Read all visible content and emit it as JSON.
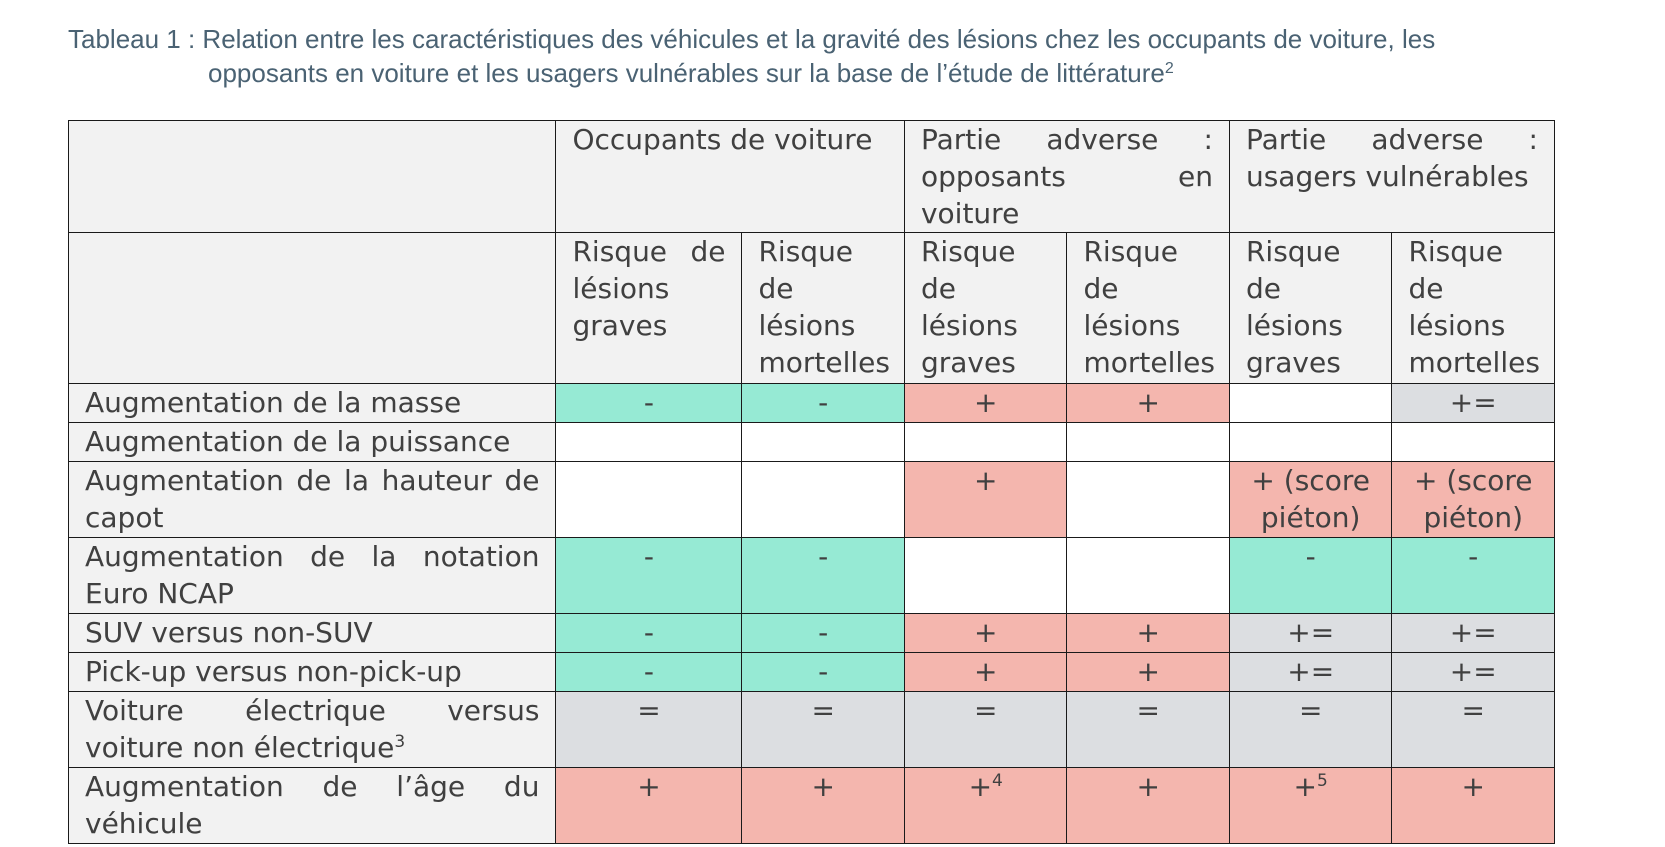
{
  "caption": {
    "line1": "Tableau 1 : Relation entre les caractéristiques des véhicules et la gravité des lésions chez les occupants de voiture, les",
    "line2": "opposants en voiture et les usagers vulnérables sur la base de l’étude de littérature",
    "footnote_ref": "2"
  },
  "table": {
    "groups": [
      "Occupants de voiture",
      "Partie adverse : opposants en voiture",
      "Partie adverse : usagers vulnérables"
    ],
    "subheaders": [
      "Risque de lésions graves",
      "Risque de lésions mortelles",
      "Risque de lésions graves",
      "Risque de lésions mortelles",
      "Risque de lésions graves",
      "Risque de lésions mortelles"
    ],
    "rows": [
      {
        "label": "Augmentation de la masse",
        "cells": [
          "-",
          "-",
          "+",
          "+",
          "",
          "+="
        ],
        "colors": [
          "green",
          "green",
          "red",
          "red",
          "white",
          "gray"
        ]
      },
      {
        "label": "Augmentation de la puissance",
        "cells": [
          "",
          "",
          "",
          "",
          "",
          ""
        ],
        "colors": [
          "white",
          "white",
          "white",
          "white",
          "white",
          "white"
        ]
      },
      {
        "label": "Augmentation de la hauteur de capot",
        "cells": [
          "",
          "",
          "+",
          "",
          "+ (score piéton)",
          "+ (score piéton)"
        ],
        "colors": [
          "white",
          "white",
          "red",
          "white",
          "red",
          "red"
        ]
      },
      {
        "label": "Augmentation de la notation Euro NCAP",
        "cells": [
          "-",
          "-",
          "",
          "",
          "-",
          "-"
        ],
        "colors": [
          "green",
          "green",
          "white",
          "white",
          "green",
          "green"
        ]
      },
      {
        "label": "SUV versus non-SUV",
        "cells": [
          "-",
          "-",
          "+",
          "+",
          "+=",
          "+="
        ],
        "colors": [
          "green",
          "green",
          "red",
          "red",
          "gray",
          "gray"
        ]
      },
      {
        "label": "Pick-up versus non-pick-up",
        "cells": [
          "-",
          "-",
          "+",
          "+",
          "+=",
          "+="
        ],
        "colors": [
          "green",
          "green",
          "red",
          "red",
          "gray",
          "gray"
        ]
      },
      {
        "label": "Voiture électrique versus voiture non électrique",
        "label_sup": "3",
        "cells": [
          "=",
          "=",
          "=",
          "=",
          "=",
          "="
        ],
        "colors": [
          "gray",
          "gray",
          "gray",
          "gray",
          "gray",
          "gray"
        ]
      },
      {
        "label": "Augmentation de l’âge du véhicule",
        "cells": [
          "+",
          "+",
          "+",
          "+",
          "+",
          "+"
        ],
        "cell_sups": [
          "",
          "",
          "4",
          "",
          "5",
          ""
        ],
        "colors": [
          "red",
          "red",
          "red",
          "red",
          "red",
          "red"
        ]
      }
    ]
  },
  "colors": {
    "caption_text": "#4a6273",
    "header_bg": "#f2f2f2",
    "green": "#96ead4",
    "red": "#f4b6ae",
    "gray": "#dcdee1",
    "border": "#1a1a1a",
    "text": "#404040"
  }
}
